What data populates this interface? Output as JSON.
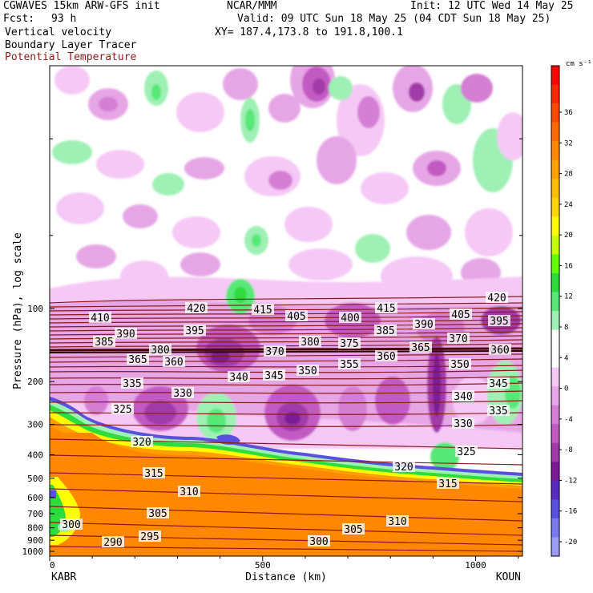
{
  "header": {
    "model": "CGWAVES 15km ARW-GFS init",
    "org": "NCAR/MMM",
    "init": "Init: 12 UTC Wed 14 May 25",
    "fcst_label": "Fcst:",
    "fcst_value": "93 h",
    "valid": "Valid: 09 UTC Sun 18 May 25 (04 CDT Sun 18 May 25)",
    "field1": "Vertical velocity",
    "xy": "XY= 187.4,173.8 to 191.8,100.1",
    "field2": "Boundary Layer Tracer",
    "field3": "Potential Temperature",
    "field3_color": "#8b1a1a"
  },
  "chart_data": {
    "type": "heatmap",
    "title": "Vertical velocity / Boundary Layer Tracer / Potential Temperature",
    "xlabel": "Distance (km)",
    "ylabel": "Pressure (hPa), log scale",
    "x_ticks": [
      "0",
      "500",
      "1000"
    ],
    "x_tick_values": [
      0,
      500,
      1000
    ],
    "xlim": [
      0,
      1110
    ],
    "left_station": "KABR",
    "right_station": "KOUN",
    "y_ticks": [
      "100",
      "200",
      "300",
      "400",
      "500",
      "600",
      "700",
      "800",
      "900",
      "1000"
    ],
    "y_tick_values": [
      100,
      200,
      300,
      400,
      500,
      600,
      700,
      800,
      900,
      1000
    ],
    "y_scale": "log",
    "colorbar": {
      "unit": "cm s⁻¹",
      "labels": [
        "36",
        "32",
        "28",
        "24",
        "20",
        "16",
        "12",
        "8",
        "4",
        "0",
        "-4",
        "-8",
        "-12",
        "-16",
        "-20"
      ],
      "bins": [
        "#ff0000",
        "#ff2a00",
        "#ff4a00",
        "#ff6a00",
        "#ff8800",
        "#ffa000",
        "#ffbb00",
        "#ffd700",
        "#ffff00",
        "#c8ff00",
        "#64ff00",
        "#2edc3c",
        "#58e878",
        "#9ef0b4",
        "#ffffff",
        "#ffffff",
        "#f5c8f5",
        "#e6a6e6",
        "#d47ed4",
        "#c25ac2",
        "#a13aa8",
        "#7c1a96",
        "#5a2cbe",
        "#5a50e0",
        "#7a7af0",
        "#9c9cf5"
      ]
    },
    "theta_labels": [
      {
        "v": "410",
        "x": 125,
        "y": 397
      },
      {
        "v": "420",
        "x": 245,
        "y": 385
      },
      {
        "v": "415",
        "x": 328,
        "y": 387
      },
      {
        "v": "405",
        "x": 370,
        "y": 395
      },
      {
        "v": "400",
        "x": 437,
        "y": 397
      },
      {
        "v": "415",
        "x": 482,
        "y": 385
      },
      {
        "v": "405",
        "x": 575,
        "y": 393
      },
      {
        "v": "420",
        "x": 620,
        "y": 372
      },
      {
        "v": "395",
        "x": 243,
        "y": 413
      },
      {
        "v": "390",
        "x": 157,
        "y": 417
      },
      {
        "v": "380",
        "x": 387,
        "y": 427
      },
      {
        "v": "375",
        "x": 436,
        "y": 429
      },
      {
        "v": "385",
        "x": 481,
        "y": 413
      },
      {
        "v": "390",
        "x": 529,
        "y": 405
      },
      {
        "v": "370",
        "x": 572,
        "y": 423
      },
      {
        "v": "395",
        "x": 623,
        "y": 401
      },
      {
        "v": "385",
        "x": 130,
        "y": 427
      },
      {
        "v": "380",
        "x": 200,
        "y": 437
      },
      {
        "v": "365",
        "x": 172,
        "y": 449
      },
      {
        "v": "360",
        "x": 217,
        "y": 452
      },
      {
        "v": "370",
        "x": 343,
        "y": 439
      },
      {
        "v": "360",
        "x": 482,
        "y": 445
      },
      {
        "v": "365",
        "x": 525,
        "y": 434
      },
      {
        "v": "355",
        "x": 436,
        "y": 455
      },
      {
        "v": "350",
        "x": 384,
        "y": 463
      },
      {
        "v": "360",
        "x": 624,
        "y": 437
      },
      {
        "v": "350",
        "x": 574,
        "y": 455
      },
      {
        "v": "340",
        "x": 298,
        "y": 471
      },
      {
        "v": "345",
        "x": 342,
        "y": 469
      },
      {
        "v": "335",
        "x": 165,
        "y": 479
      },
      {
        "v": "330",
        "x": 228,
        "y": 491
      },
      {
        "v": "345",
        "x": 622,
        "y": 479
      },
      {
        "v": "340",
        "x": 578,
        "y": 495
      },
      {
        "v": "325",
        "x": 153,
        "y": 511
      },
      {
        "v": "335",
        "x": 622,
        "y": 513
      },
      {
        "v": "330",
        "x": 578,
        "y": 529
      },
      {
        "v": "320",
        "x": 177,
        "y": 552
      },
      {
        "v": "325",
        "x": 582,
        "y": 564
      },
      {
        "v": "320",
        "x": 504,
        "y": 583
      },
      {
        "v": "315",
        "x": 192,
        "y": 591
      },
      {
        "v": "315",
        "x": 559,
        "y": 604
      },
      {
        "v": "310",
        "x": 236,
        "y": 614
      },
      {
        "v": "305",
        "x": 197,
        "y": 641
      },
      {
        "v": "310",
        "x": 496,
        "y": 651
      },
      {
        "v": "305",
        "x": 441,
        "y": 661
      },
      {
        "v": "300",
        "x": 89,
        "y": 655
      },
      {
        "v": "295",
        "x": 187,
        "y": 670
      },
      {
        "v": "290",
        "x": 141,
        "y": 677
      },
      {
        "v": "300",
        "x": 398,
        "y": 676
      }
    ],
    "legend": "none",
    "grid": false
  }
}
